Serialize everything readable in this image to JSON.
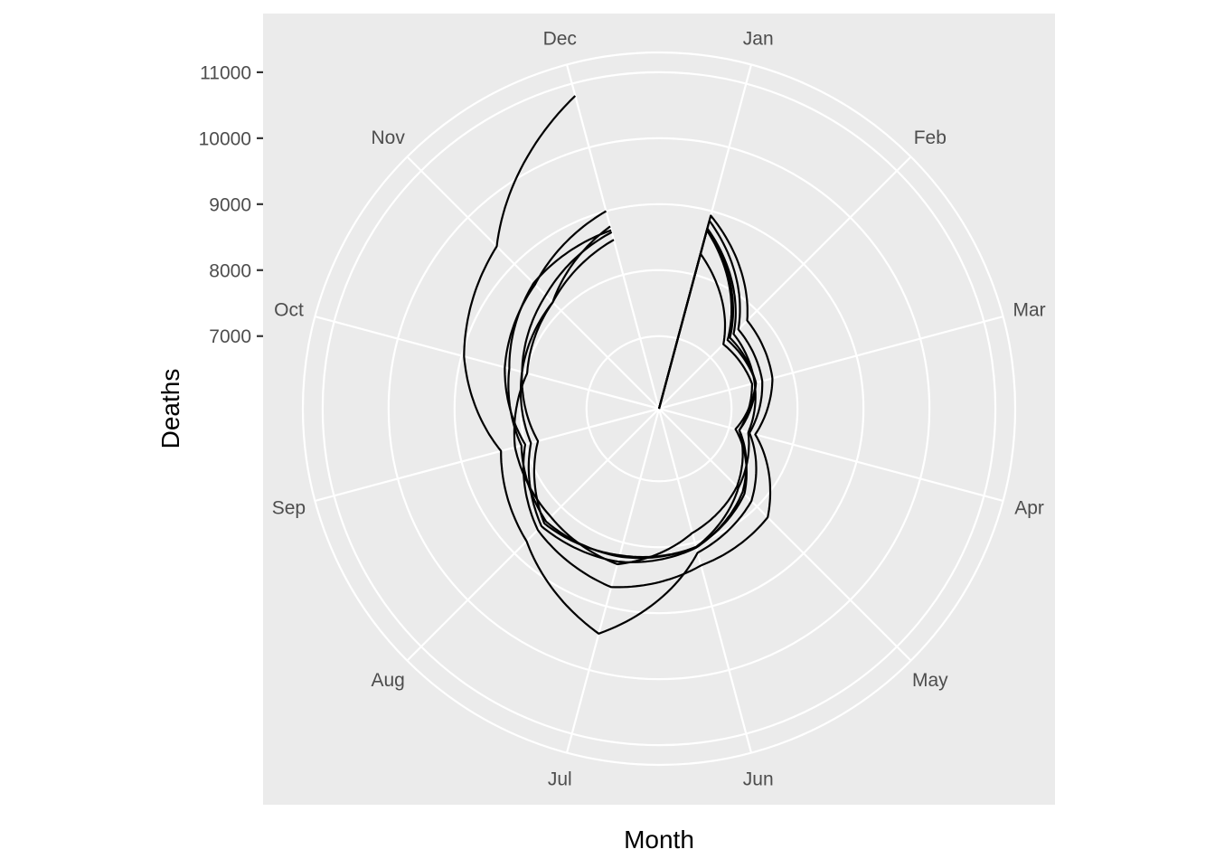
{
  "chart_data": {
    "type": "line",
    "coord": "polar",
    "title": "",
    "xlabel": "Month",
    "ylabel": "Deaths",
    "theta_ticks": [
      "Jan",
      "Feb",
      "Mar",
      "Apr",
      "May",
      "Jun",
      "Jul",
      "Aug",
      "Sep",
      "Oct",
      "Nov",
      "Dec"
    ],
    "r_ticks": [
      7000,
      8000,
      9000,
      10000,
      11000
    ],
    "r_range": [
      5900,
      11300
    ],
    "grid": true,
    "legend": "none",
    "colors": {
      "panel": "#EBEBEB",
      "grid": "#FFFFFF",
      "line": "#000000",
      "tick_text": "#4D4D4D"
    },
    "series": [
      {
        "values": [
          8930,
          7790,
          7680,
          7410,
          8230,
          8360,
          8700,
          8500,
          8000,
          8320,
          8560,
          9000
        ]
      },
      {
        "values": [
          8850,
          7600,
          7520,
          7320,
          7880,
          8160,
          9430,
          8740,
          8380,
          8960,
          9380,
          10810
        ]
      },
      {
        "values": [
          8720,
          7420,
          7420,
          7160,
          7690,
          8080,
          8300,
          8420,
          7910,
          8050,
          8330,
          8670
        ]
      },
      {
        "values": [
          8730,
          7500,
          7400,
          7300,
          7600,
          8070,
          8200,
          8360,
          7800,
          8050,
          8180,
          8550
        ]
      },
      {
        "values": [
          8700,
          7370,
          7420,
          7100,
          7730,
          8070,
          8220,
          8320,
          8060,
          8250,
          8590,
          8700
        ]
      },
      {
        "values": [
          8330,
          7280,
          7360,
          7160,
          7570,
          7850,
          8340,
          8220,
          8160,
          7970,
          8180,
          8760
        ]
      }
    ]
  }
}
